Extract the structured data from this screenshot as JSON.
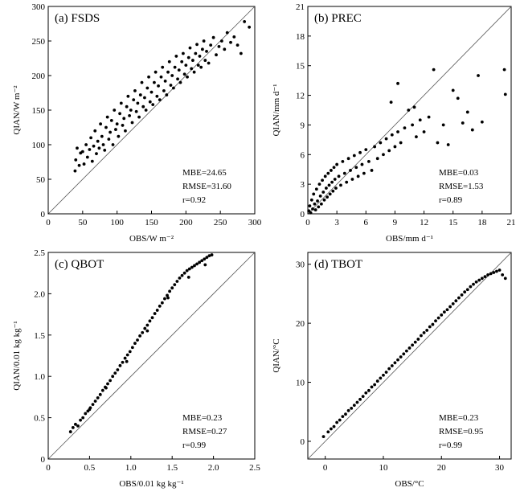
{
  "chart_data": [
    {
      "type": "scatter",
      "title": "(a) FSDS",
      "xlabel": "OBS/W m⁻²",
      "ylabel": "QIAN/W m⁻²",
      "xlim": [
        0,
        300
      ],
      "ylim": [
        0,
        300
      ],
      "xticks": [
        "0",
        "50",
        "100",
        "150",
        "200",
        "250",
        "300"
      ],
      "yticks": [
        "0",
        "50",
        "100",
        "150",
        "200",
        "250",
        "300"
      ],
      "reference_line": "1:1",
      "stats": [
        "MBE=24.65",
        "RMSE=31.60",
        "r=0.92"
      ],
      "points": [
        [
          39,
          62
        ],
        [
          40,
          78
        ],
        [
          42,
          95
        ],
        [
          45,
          70
        ],
        [
          47,
          88
        ],
        [
          50,
          90
        ],
        [
          52,
          72
        ],
        [
          55,
          100
        ],
        [
          57,
          82
        ],
        [
          60,
          93
        ],
        [
          62,
          110
        ],
        [
          64,
          76
        ],
        [
          66,
          98
        ],
        [
          68,
          120
        ],
        [
          70,
          87
        ],
        [
          72,
          105
        ],
        [
          74,
          95
        ],
        [
          76,
          130
        ],
        [
          78,
          112
        ],
        [
          80,
          100
        ],
        [
          82,
          92
        ],
        [
          84,
          125
        ],
        [
          86,
          140
        ],
        [
          88,
          108
        ],
        [
          90,
          118
        ],
        [
          92,
          135
        ],
        [
          94,
          100
        ],
        [
          96,
          150
        ],
        [
          98,
          122
        ],
        [
          100,
          130
        ],
        [
          102,
          112
        ],
        [
          104,
          145
        ],
        [
          106,
          160
        ],
        [
          108,
          128
        ],
        [
          110,
          138
        ],
        [
          112,
          120
        ],
        [
          114,
          155
        ],
        [
          116,
          170
        ],
        [
          118,
          142
        ],
        [
          120,
          150
        ],
        [
          122,
          132
        ],
        [
          124,
          165
        ],
        [
          126,
          178
        ],
        [
          128,
          148
        ],
        [
          130,
          160
        ],
        [
          132,
          140
        ],
        [
          134,
          172
        ],
        [
          136,
          190
        ],
        [
          138,
          155
        ],
        [
          140,
          168
        ],
        [
          142,
          150
        ],
        [
          144,
          182
        ],
        [
          146,
          198
        ],
        [
          148,
          162
        ],
        [
          150,
          176
        ],
        [
          152,
          158
        ],
        [
          154,
          190
        ],
        [
          156,
          205
        ],
        [
          158,
          170
        ],
        [
          160,
          185
        ],
        [
          162,
          165
        ],
        [
          164,
          198
        ],
        [
          166,
          212
        ],
        [
          168,
          178
        ],
        [
          170,
          192
        ],
        [
          172,
          172
        ],
        [
          174,
          205
        ],
        [
          176,
          220
        ],
        [
          178,
          186
        ],
        [
          180,
          200
        ],
        [
          182,
          182
        ],
        [
          184,
          212
        ],
        [
          186,
          228
        ],
        [
          188,
          195
        ],
        [
          190,
          208
        ],
        [
          192,
          190
        ],
        [
          194,
          220
        ],
        [
          196,
          232
        ],
        [
          198,
          202
        ],
        [
          200,
          215
        ],
        [
          202,
          198
        ],
        [
          204,
          226
        ],
        [
          206,
          240
        ],
        [
          208,
          210
        ],
        [
          210,
          222
        ],
        [
          212,
          205
        ],
        [
          214,
          232
        ],
        [
          216,
          245
        ],
        [
          218,
          215
        ],
        [
          220,
          228
        ],
        [
          222,
          212
        ],
        [
          224,
          238
        ],
        [
          226,
          250
        ],
        [
          228,
          222
        ],
        [
          230,
          235
        ],
        [
          233,
          218
        ],
        [
          236,
          244
        ],
        [
          240,
          255
        ],
        [
          244,
          230
        ],
        [
          248,
          242
        ],
        [
          252,
          250
        ],
        [
          256,
          238
        ],
        [
          260,
          262
        ],
        [
          265,
          248
        ],
        [
          270,
          256
        ],
        [
          275,
          244
        ],
        [
          280,
          232
        ],
        [
          285,
          278
        ],
        [
          292,
          270
        ]
      ]
    },
    {
      "type": "scatter",
      "title": "(b) PREC",
      "xlabel": "OBS/mm d⁻¹",
      "ylabel": "QIAN/mm d⁻¹",
      "xlim": [
        0,
        21
      ],
      "ylim": [
        0,
        21
      ],
      "xticks": [
        "0",
        "3",
        "6",
        "9",
        "12",
        "15",
        "18",
        "21"
      ],
      "yticks": [
        "0",
        "3",
        "6",
        "9",
        "12",
        "15",
        "18",
        "21"
      ],
      "reference_line": "1:1",
      "stats": [
        "MBE=0.03",
        "RMSE=1.53",
        "r=0.89"
      ],
      "points": [
        [
          0.1,
          0.3
        ],
        [
          0.2,
          0.8
        ],
        [
          0.3,
          0.1
        ],
        [
          0.4,
          1.4
        ],
        [
          0.5,
          0.5
        ],
        [
          0.6,
          2.0
        ],
        [
          0.7,
          1.0
        ],
        [
          0.8,
          0.4
        ],
        [
          0.9,
          2.5
        ],
        [
          1.0,
          1.3
        ],
        [
          1.1,
          0.7
        ],
        [
          1.2,
          3.0
        ],
        [
          1.3,
          1.8
        ],
        [
          1.4,
          1.0
        ],
        [
          1.5,
          3.4
        ],
        [
          1.6,
          2.2
        ],
        [
          1.7,
          1.4
        ],
        [
          1.8,
          3.8
        ],
        [
          1.9,
          2.6
        ],
        [
          2.0,
          1.7
        ],
        [
          2.1,
          4.1
        ],
        [
          2.2,
          2.9
        ],
        [
          2.3,
          2.0
        ],
        [
          2.4,
          4.4
        ],
        [
          2.5,
          3.2
        ],
        [
          2.6,
          2.3
        ],
        [
          2.7,
          4.7
        ],
        [
          2.8,
          3.5
        ],
        [
          2.9,
          2.6
        ],
        [
          3.0,
          5.0
        ],
        [
          3.2,
          3.8
        ],
        [
          3.4,
          2.9
        ],
        [
          3.6,
          5.3
        ],
        [
          3.8,
          4.1
        ],
        [
          4.0,
          3.2
        ],
        [
          4.2,
          5.6
        ],
        [
          4.4,
          4.4
        ],
        [
          4.6,
          3.5
        ],
        [
          4.8,
          5.9
        ],
        [
          5.0,
          4.7
        ],
        [
          5.2,
          3.8
        ],
        [
          5.4,
          6.2
        ],
        [
          5.6,
          5.0
        ],
        [
          5.8,
          4.1
        ],
        [
          6.0,
          6.5
        ],
        [
          6.3,
          5.3
        ],
        [
          6.6,
          4.4
        ],
        [
          6.9,
          6.8
        ],
        [
          7.2,
          5.6
        ],
        [
          7.5,
          7.2
        ],
        [
          7.8,
          6.0
        ],
        [
          8.1,
          7.6
        ],
        [
          8.4,
          6.4
        ],
        [
          8.7,
          8.0
        ],
        [
          9.0,
          6.8
        ],
        [
          9.3,
          8.3
        ],
        [
          9.6,
          7.2
        ],
        [
          10.0,
          8.7
        ],
        [
          10.4,
          10.5
        ],
        [
          10.8,
          9.0
        ],
        [
          11.2,
          7.8
        ],
        [
          11.6,
          9.5
        ],
        [
          12.0,
          8.3
        ],
        [
          12.5,
          9.8
        ],
        [
          13.0,
          14.6
        ],
        [
          13.4,
          7.2
        ],
        [
          14.0,
          9.0
        ],
        [
          14.5,
          7.0
        ],
        [
          15.0,
          12.5
        ],
        [
          15.5,
          11.7
        ],
        [
          16.0,
          9.2
        ],
        [
          16.5,
          10.3
        ],
        [
          17.0,
          8.5
        ],
        [
          17.6,
          14.0
        ],
        [
          18.0,
          9.3
        ],
        [
          20.3,
          14.6
        ],
        [
          20.4,
          12.1
        ],
        [
          9.3,
          13.2
        ],
        [
          8.6,
          11.3
        ],
        [
          11.0,
          10.8
        ]
      ]
    },
    {
      "type": "scatter",
      "title": "(c) QBOT",
      "xlabel": "OBS/0.01 kg kg⁻¹",
      "ylabel": "QIAN/0.01 kg kg⁻¹",
      "xlim": [
        0,
        2.5
      ],
      "ylim": [
        0,
        2.5
      ],
      "xticks": [
        "0",
        "0.5",
        "1.0",
        "1.5",
        "2.0",
        "2.5"
      ],
      "yticks": [
        "0",
        "0.5",
        "1.0",
        "1.5",
        "2.0",
        "2.5"
      ],
      "reference_line": "1:1",
      "stats": [
        "MBE=0.23",
        "RMSE=0.27",
        "r=0.99"
      ],
      "points": [
        [
          0.27,
          0.33
        ],
        [
          0.3,
          0.38
        ],
        [
          0.33,
          0.42
        ],
        [
          0.36,
          0.4
        ],
        [
          0.39,
          0.47
        ],
        [
          0.42,
          0.5
        ],
        [
          0.45,
          0.55
        ],
        [
          0.48,
          0.58
        ],
        [
          0.51,
          0.62
        ],
        [
          0.54,
          0.66
        ],
        [
          0.57,
          0.7
        ],
        [
          0.6,
          0.74
        ],
        [
          0.63,
          0.78
        ],
        [
          0.66,
          0.83
        ],
        [
          0.69,
          0.87
        ],
        [
          0.72,
          0.91
        ],
        [
          0.75,
          0.95
        ],
        [
          0.78,
          1.0
        ],
        [
          0.81,
          1.04
        ],
        [
          0.84,
          1.08
        ],
        [
          0.87,
          1.13
        ],
        [
          0.9,
          1.17
        ],
        [
          0.93,
          1.22
        ],
        [
          0.96,
          1.26
        ],
        [
          0.99,
          1.3
        ],
        [
          1.02,
          1.35
        ],
        [
          1.05,
          1.4
        ],
        [
          1.08,
          1.44
        ],
        [
          1.11,
          1.49
        ],
        [
          1.14,
          1.53
        ],
        [
          1.17,
          1.58
        ],
        [
          1.2,
          1.62
        ],
        [
          1.23,
          1.67
        ],
        [
          1.26,
          1.71
        ],
        [
          1.29,
          1.76
        ],
        [
          1.32,
          1.8
        ],
        [
          1.35,
          1.85
        ],
        [
          1.38,
          1.89
        ],
        [
          1.41,
          1.94
        ],
        [
          1.44,
          1.98
        ],
        [
          1.47,
          2.03
        ],
        [
          1.5,
          2.07
        ],
        [
          1.53,
          2.11
        ],
        [
          1.56,
          2.15
        ],
        [
          1.59,
          2.19
        ],
        [
          1.62,
          2.22
        ],
        [
          1.65,
          2.25
        ],
        [
          1.68,
          2.28
        ],
        [
          1.71,
          2.3
        ],
        [
          1.74,
          2.32
        ],
        [
          1.77,
          2.34
        ],
        [
          1.8,
          2.36
        ],
        [
          1.83,
          2.38
        ],
        [
          1.86,
          2.4
        ],
        [
          1.89,
          2.42
        ],
        [
          1.92,
          2.44
        ],
        [
          1.95,
          2.46
        ],
        [
          1.98,
          2.47
        ],
        [
          0.5,
          0.6
        ],
        [
          0.7,
          0.86
        ],
        [
          0.95,
          1.18
        ],
        [
          1.2,
          1.55
        ],
        [
          1.45,
          1.95
        ],
        [
          1.7,
          2.2
        ],
        [
          1.9,
          2.35
        ]
      ]
    },
    {
      "type": "scatter",
      "title": "(d) TBOT",
      "xlabel": "OBS/°C",
      "ylabel": "QIAN/°C",
      "xlim": [
        -3,
        32
      ],
      "ylim": [
        -3,
        32
      ],
      "xticks": [
        "0",
        "10",
        "20",
        "30"
      ],
      "yticks": [
        "0",
        "10",
        "20",
        "30"
      ],
      "reference_line": "1:1",
      "stats": [
        "MBE=0.23",
        "RMSE=0.95",
        "r=0.99"
      ],
      "points": [
        [
          -0.3,
          0.8
        ],
        [
          0.5,
          1.6
        ],
        [
          1.0,
          2.1
        ],
        [
          1.5,
          2.5
        ],
        [
          2.0,
          3.2
        ],
        [
          2.5,
          3.6
        ],
        [
          3.0,
          4.2
        ],
        [
          3.5,
          4.6
        ],
        [
          4.0,
          5.2
        ],
        [
          4.5,
          5.6
        ],
        [
          5.0,
          6.1
        ],
        [
          5.5,
          6.6
        ],
        [
          6.0,
          7.1
        ],
        [
          6.5,
          7.6
        ],
        [
          7.0,
          8.2
        ],
        [
          7.5,
          8.6
        ],
        [
          8.0,
          9.2
        ],
        [
          8.5,
          9.6
        ],
        [
          9.0,
          10.2
        ],
        [
          9.5,
          10.7
        ],
        [
          10.0,
          11.2
        ],
        [
          10.5,
          11.7
        ],
        [
          11.0,
          12.3
        ],
        [
          11.5,
          12.8
        ],
        [
          12.0,
          13.3
        ],
        [
          12.5,
          13.8
        ],
        [
          13.0,
          14.3
        ],
        [
          13.5,
          14.8
        ],
        [
          14.0,
          15.3
        ],
        [
          14.5,
          15.8
        ],
        [
          15.0,
          16.3
        ],
        [
          15.5,
          16.8
        ],
        [
          16.0,
          17.3
        ],
        [
          16.5,
          17.9
        ],
        [
          17.0,
          18.4
        ],
        [
          17.5,
          18.8
        ],
        [
          18.0,
          19.4
        ],
        [
          18.5,
          19.8
        ],
        [
          19.0,
          20.4
        ],
        [
          19.5,
          20.9
        ],
        [
          20.0,
          21.4
        ],
        [
          20.5,
          21.9
        ],
        [
          21.0,
          22.3
        ],
        [
          21.5,
          22.8
        ],
        [
          22.0,
          23.3
        ],
        [
          22.5,
          23.8
        ],
        [
          23.0,
          24.3
        ],
        [
          23.5,
          24.8
        ],
        [
          24.0,
          25.3
        ],
        [
          24.5,
          25.7
        ],
        [
          25.0,
          26.2
        ],
        [
          25.5,
          26.6
        ],
        [
          26.0,
          27.0
        ],
        [
          26.5,
          27.3
        ],
        [
          27.0,
          27.6
        ],
        [
          27.5,
          27.9
        ],
        [
          28.0,
          28.2
        ],
        [
          28.5,
          28.4
        ],
        [
          29.0,
          28.6
        ],
        [
          29.5,
          28.8
        ],
        [
          30.0,
          29.0
        ],
        [
          30.5,
          28.2
        ],
        [
          31.0,
          27.6
        ]
      ]
    }
  ]
}
